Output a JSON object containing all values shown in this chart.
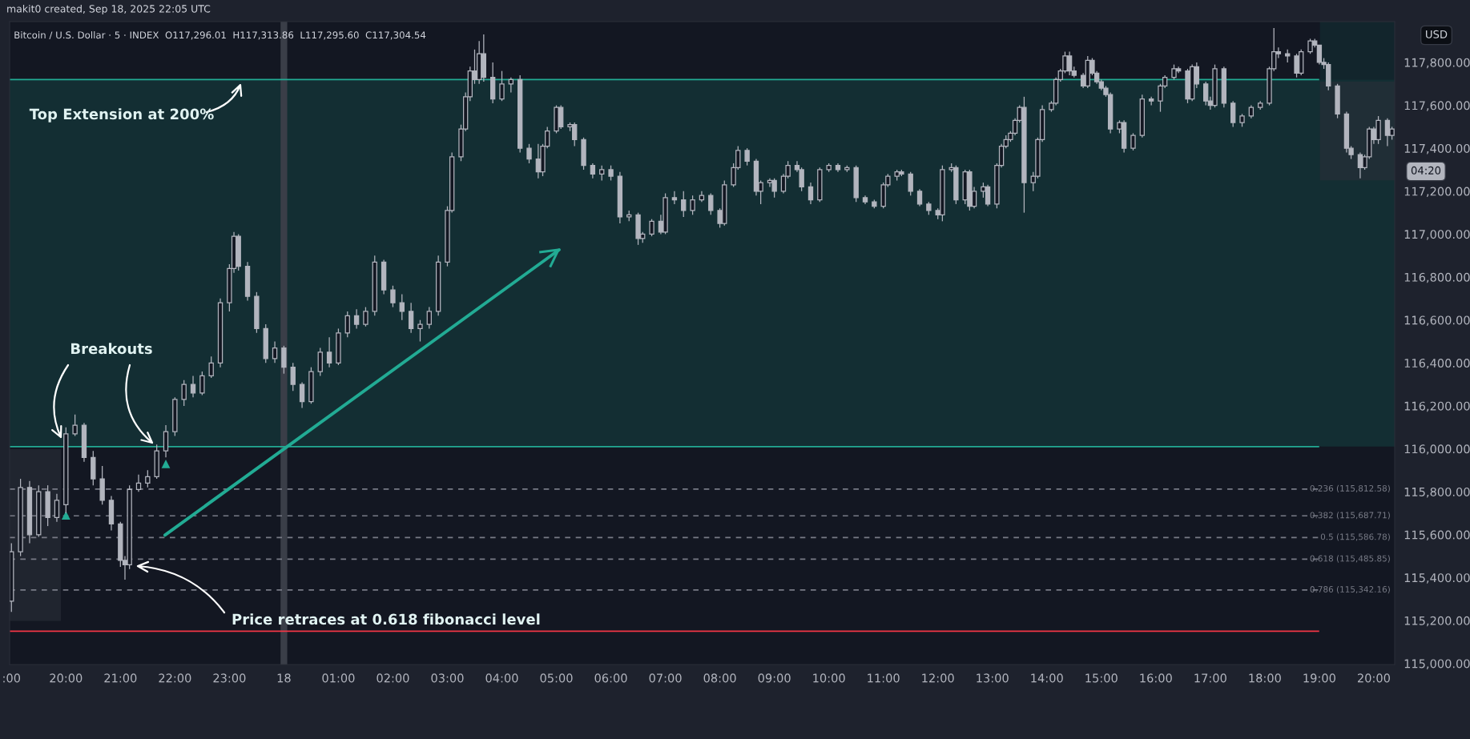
{
  "chart_data": {
    "type": "candlestick",
    "title": "Bitcoin / U.S. Dollar · 5 · INDEX  O117,296.01  H117,313.86  L117,295.60  C117,304.54",
    "color": "#b2b5be",
    "x": [
      "2025-09-17T19:00",
      "2025-09-17T19:10",
      "2025-09-17T19:20",
      "2025-09-17T19:30",
      "2025-09-17T19:40",
      "2025-09-17T19:50",
      "2025-09-17T20:00",
      "2025-09-17T20:10",
      "2025-09-17T20:20",
      "2025-09-17T20:30",
      "2025-09-17T20:40",
      "2025-09-17T20:50",
      "2025-09-17T21:00",
      "2025-09-17T21:05",
      "2025-09-17T21:10",
      "2025-09-17T21:20",
      "2025-09-17T21:30",
      "2025-09-17T21:40",
      "2025-09-17T21:50",
      "2025-09-17T22:00",
      "2025-09-17T22:10",
      "2025-09-17T22:20",
      "2025-09-17T22:30",
      "2025-09-17T22:40",
      "2025-09-17T22:50",
      "2025-09-17T23:00",
      "2025-09-17T23:05",
      "2025-09-17T23:10",
      "2025-09-17T23:20",
      "2025-09-17T23:30",
      "2025-09-17T23:40",
      "2025-09-17T23:50",
      "2025-09-18T00:00",
      "2025-09-18T00:10",
      "2025-09-18T00:20",
      "2025-09-18T00:30",
      "2025-09-18T00:40",
      "2025-09-18T00:50",
      "2025-09-18T01:00",
      "2025-09-18T01:10",
      "2025-09-18T01:20",
      "2025-09-18T01:30",
      "2025-09-18T01:40",
      "2025-09-18T01:50",
      "2025-09-18T02:00",
      "2025-09-18T02:10",
      "2025-09-18T02:20",
      "2025-09-18T02:30",
      "2025-09-18T02:40",
      "2025-09-18T02:50",
      "2025-09-18T03:00",
      "2025-09-18T03:05",
      "2025-09-18T03:15",
      "2025-09-18T03:20",
      "2025-09-18T03:25",
      "2025-09-18T03:30",
      "2025-09-18T03:35",
      "2025-09-18T03:40",
      "2025-09-18T03:50",
      "2025-09-18T04:00",
      "2025-09-18T04:10",
      "2025-09-18T04:20",
      "2025-09-18T04:30",
      "2025-09-18T04:40",
      "2025-09-18T04:45",
      "2025-09-18T04:50",
      "2025-09-18T05:00",
      "2025-09-18T05:05",
      "2025-09-18T05:15",
      "2025-09-18T05:20",
      "2025-09-18T05:30",
      "2025-09-18T05:40",
      "2025-09-18T05:50",
      "2025-09-18T06:00",
      "2025-09-18T06:10",
      "2025-09-18T06:20",
      "2025-09-18T06:30",
      "2025-09-18T06:35",
      "2025-09-18T06:45",
      "2025-09-18T06:55",
      "2025-09-18T07:00",
      "2025-09-18T07:10",
      "2025-09-18T07:20",
      "2025-09-18T07:30",
      "2025-09-18T07:40",
      "2025-09-18T07:50",
      "2025-09-18T08:00",
      "2025-09-18T08:05",
      "2025-09-18T08:15",
      "2025-09-18T08:20",
      "2025-09-18T08:30",
      "2025-09-18T08:40",
      "2025-09-18T08:45",
      "2025-09-18T08:55",
      "2025-09-18T09:00",
      "2025-09-18T09:10",
      "2025-09-18T09:15",
      "2025-09-18T09:25",
      "2025-09-18T09:30",
      "2025-09-18T09:40",
      "2025-09-18T09:50",
      "2025-09-18T10:00",
      "2025-09-18T10:10",
      "2025-09-18T10:20",
      "2025-09-18T10:30",
      "2025-09-18T10:40",
      "2025-09-18T10:50",
      "2025-09-18T11:00",
      "2025-09-18T11:05",
      "2025-09-18T11:15",
      "2025-09-18T11:20",
      "2025-09-18T11:30",
      "2025-09-18T11:40",
      "2025-09-18T11:50",
      "2025-09-18T12:00",
      "2025-09-18T12:05",
      "2025-09-18T12:15",
      "2025-09-18T12:20",
      "2025-09-18T12:30",
      "2025-09-18T12:35",
      "2025-09-18T12:40",
      "2025-09-18T12:50",
      "2025-09-18T12:55",
      "2025-09-18T13:05",
      "2025-09-18T13:10",
      "2025-09-18T13:15",
      "2025-09-18T13:20",
      "2025-09-18T13:25",
      "2025-09-18T13:30",
      "2025-09-18T13:35",
      "2025-09-18T13:45",
      "2025-09-18T13:50",
      "2025-09-18T13:55",
      "2025-09-18T14:05",
      "2025-09-18T14:10",
      "2025-09-18T14:15",
      "2025-09-18T14:20",
      "2025-09-18T14:25",
      "2025-09-18T14:30",
      "2025-09-18T14:40",
      "2025-09-18T14:45",
      "2025-09-18T14:50",
      "2025-09-18T14:55",
      "2025-09-18T15:00",
      "2025-09-18T15:05",
      "2025-09-18T15:10",
      "2025-09-18T15:20",
      "2025-09-18T15:25",
      "2025-09-18T15:35",
      "2025-09-18T15:45",
      "2025-09-18T15:55",
      "2025-09-18T16:05",
      "2025-09-18T16:10",
      "2025-09-18T16:20",
      "2025-09-18T16:25",
      "2025-09-18T16:35",
      "2025-09-18T16:40",
      "2025-09-18T16:45",
      "2025-09-18T16:55",
      "2025-09-18T17:00",
      "2025-09-18T17:05",
      "2025-09-18T17:15",
      "2025-09-18T17:25",
      "2025-09-18T17:35",
      "2025-09-18T17:45",
      "2025-09-18T17:55",
      "2025-09-18T18:05",
      "2025-09-18T18:10",
      "2025-09-18T18:15",
      "2025-09-18T18:25",
      "2025-09-18T18:35",
      "2025-09-18T18:40",
      "2025-09-18T18:50",
      "2025-09-18T18:55",
      "2025-09-18T19:00",
      "2025-09-18T19:05",
      "2025-09-18T19:10",
      "2025-09-18T19:20",
      "2025-09-18T19:30",
      "2025-09-18T19:35",
      "2025-09-18T19:45",
      "2025-09-18T19:50",
      "2025-09-18T19:55",
      "2025-09-18T20:00",
      "2025-09-18T20:05",
      "2025-09-18T20:15",
      "2025-09-18T20:20"
    ],
    "ohlc": [
      [
        115290,
        115560,
        115240,
        115520
      ],
      [
        115520,
        115860,
        115500,
        115820
      ],
      [
        115820,
        115850,
        115560,
        115600
      ],
      [
        115600,
        115830,
        115590,
        115800
      ],
      [
        115800,
        115830,
        115640,
        115680
      ],
      [
        115680,
        115790,
        115660,
        115760
      ],
      [
        115740,
        116100,
        115700,
        116070
      ],
      [
        116070,
        116160,
        116060,
        116110
      ],
      [
        116110,
        116120,
        115940,
        115960
      ],
      [
        115960,
        115990,
        115830,
        115860
      ],
      [
        115860,
        115920,
        115740,
        115760
      ],
      [
        115760,
        115780,
        115620,
        115650
      ],
      [
        115650,
        115660,
        115450,
        115480
      ],
      [
        115480,
        115500,
        115390,
        115460
      ],
      [
        115460,
        115830,
        115440,
        115810
      ],
      [
        115810,
        115880,
        115800,
        115840
      ],
      [
        115840,
        115900,
        115820,
        115870
      ],
      [
        115870,
        116020,
        115860,
        115990
      ],
      [
        115990,
        116110,
        115960,
        116080
      ],
      [
        116080,
        116240,
        116060,
        116230
      ],
      [
        116230,
        116320,
        116200,
        116300
      ],
      [
        116300,
        116340,
        116240,
        116260
      ],
      [
        116260,
        116360,
        116250,
        116340
      ],
      [
        116340,
        116430,
        116330,
        116400
      ],
      [
        116400,
        116700,
        116380,
        116680
      ],
      [
        116680,
        116860,
        116640,
        116840
      ],
      [
        116840,
        117010,
        116820,
        116990
      ],
      [
        116990,
        117000,
        116830,
        116850
      ],
      [
        116850,
        116870,
        116690,
        116710
      ],
      [
        116710,
        116730,
        116540,
        116560
      ],
      [
        116560,
        116580,
        116400,
        116420
      ],
      [
        116420,
        116500,
        116400,
        116470
      ],
      [
        116470,
        116480,
        116350,
        116380
      ],
      [
        116380,
        116400,
        116270,
        116300
      ],
      [
        116300,
        116310,
        116190,
        116220
      ],
      [
        116220,
        116380,
        116210,
        116360
      ],
      [
        116360,
        116470,
        116340,
        116450
      ],
      [
        116450,
        116520,
        116380,
        116400
      ],
      [
        116400,
        116560,
        116390,
        116540
      ],
      [
        116540,
        116640,
        116520,
        116620
      ],
      [
        116620,
        116650,
        116560,
        116580
      ],
      [
        116580,
        116660,
        116570,
        116640
      ],
      [
        116640,
        116900,
        116620,
        116870
      ],
      [
        116870,
        116880,
        116720,
        116740
      ],
      [
        116740,
        116760,
        116660,
        116680
      ],
      [
        116680,
        116720,
        116600,
        116640
      ],
      [
        116640,
        116680,
        116540,
        116560
      ],
      [
        116560,
        116600,
        116500,
        116580
      ],
      [
        116580,
        116660,
        116560,
        116640
      ],
      [
        116640,
        116900,
        116620,
        116870
      ],
      [
        116870,
        117130,
        116850,
        117110
      ],
      [
        117110,
        117380,
        117100,
        117360
      ],
      [
        117360,
        117510,
        117340,
        117490
      ],
      [
        117490,
        117660,
        117480,
        117640
      ],
      [
        117640,
        117780,
        117620,
        117760
      ],
      [
        117760,
        117860,
        117700,
        117720
      ],
      [
        117720,
        117900,
        117700,
        117840
      ],
      [
        117840,
        117930,
        117710,
        117730
      ],
      [
        117730,
        117800,
        117610,
        117630
      ],
      [
        117630,
        117760,
        117620,
        117700
      ],
      [
        117700,
        117730,
        117660,
        117720
      ],
      [
        117720,
        117740,
        117380,
        117400
      ],
      [
        117400,
        117420,
        117330,
        117350
      ],
      [
        117350,
        117420,
        117260,
        117290
      ],
      [
        117290,
        117420,
        117270,
        117410
      ],
      [
        117410,
        117500,
        117400,
        117480
      ],
      [
        117480,
        117600,
        117470,
        117590
      ],
      [
        117590,
        117600,
        117490,
        117500
      ],
      [
        117500,
        117520,
        117480,
        117510
      ],
      [
        117510,
        117520,
        117410,
        117440
      ],
      [
        117440,
        117450,
        117300,
        117320
      ],
      [
        117320,
        117330,
        117260,
        117280
      ],
      [
        117280,
        117320,
        117250,
        117300
      ],
      [
        117300,
        117320,
        117250,
        117270
      ],
      [
        117270,
        117290,
        117050,
        117080
      ],
      [
        117080,
        117110,
        117060,
        117090
      ],
      [
        117090,
        117100,
        116950,
        116980
      ],
      [
        116980,
        117010,
        116960,
        117000
      ],
      [
        117000,
        117070,
        116990,
        117060
      ],
      [
        117060,
        117090,
        117000,
        117010
      ],
      [
        117010,
        117190,
        117000,
        117170
      ],
      [
        117170,
        117200,
        117140,
        117160
      ],
      [
        117160,
        117200,
        117080,
        117110
      ],
      [
        117110,
        117180,
        117090,
        117160
      ],
      [
        117160,
        117200,
        117150,
        117180
      ],
      [
        117180,
        117190,
        117090,
        117110
      ],
      [
        117110,
        117120,
        117030,
        117050
      ],
      [
        117050,
        117250,
        117040,
        117230
      ],
      [
        117230,
        117330,
        117220,
        117310
      ],
      [
        117310,
        117410,
        117300,
        117390
      ],
      [
        117390,
        117400,
        117320,
        117340
      ],
      [
        117340,
        117350,
        117180,
        117200
      ],
      [
        117200,
        117250,
        117140,
        117240
      ],
      [
        117240,
        117260,
        117220,
        117250
      ],
      [
        117250,
        117260,
        117170,
        117200
      ],
      [
        117200,
        117280,
        117190,
        117270
      ],
      [
        117270,
        117340,
        117260,
        117320
      ],
      [
        117320,
        117340,
        117290,
        117300
      ],
      [
        117300,
        117310,
        117200,
        117220
      ],
      [
        117220,
        117240,
        117140,
        117160
      ],
      [
        117160,
        117310,
        117150,
        117300
      ],
      [
        117300,
        117330,
        117290,
        117320
      ],
      [
        117320,
        117330,
        117290,
        117300
      ],
      [
        117300,
        117320,
        117290,
        117310
      ],
      [
        117310,
        117320,
        117150,
        117170
      ],
      [
        117170,
        117180,
        117140,
        117150
      ],
      [
        117150,
        117160,
        117120,
        117130
      ],
      [
        117130,
        117240,
        117120,
        117230
      ],
      [
        117230,
        117280,
        117220,
        117270
      ],
      [
        117270,
        117300,
        117250,
        117290
      ],
      [
        117290,
        117300,
        117270,
        117280
      ],
      [
        117280,
        117290,
        117180,
        117200
      ],
      [
        117200,
        117210,
        117130,
        117140
      ],
      [
        117140,
        117150,
        117090,
        117110
      ],
      [
        117110,
        117120,
        117070,
        117090
      ],
      [
        117090,
        117320,
        117060,
        117300
      ],
      [
        117300,
        117330,
        117290,
        117310
      ],
      [
        117310,
        117320,
        117140,
        117160
      ],
      [
        117160,
        117300,
        117140,
        117290
      ],
      [
        117290,
        117300,
        117110,
        117130
      ],
      [
        117130,
        117220,
        117120,
        117200
      ],
      [
        117200,
        117240,
        117170,
        117220
      ],
      [
        117220,
        117230,
        117130,
        117140
      ],
      [
        117140,
        117330,
        117120,
        117320
      ],
      [
        117320,
        117420,
        117310,
        117410
      ],
      [
        117410,
        117460,
        117400,
        117440
      ],
      [
        117440,
        117480,
        117430,
        117470
      ],
      [
        117470,
        117540,
        117460,
        117530
      ],
      [
        117530,
        117600,
        117520,
        117590
      ],
      [
        117590,
        117640,
        117100,
        117240
      ],
      [
        117240,
        117290,
        117200,
        117270
      ],
      [
        117270,
        117450,
        117260,
        117440
      ],
      [
        117440,
        117600,
        117430,
        117580
      ],
      [
        117580,
        117620,
        117570,
        117610
      ],
      [
        117610,
        117730,
        117600,
        117720
      ],
      [
        117720,
        117770,
        117710,
        117760
      ],
      [
        117760,
        117850,
        117750,
        117830
      ],
      [
        117830,
        117850,
        117740,
        117760
      ],
      [
        117760,
        117780,
        117730,
        117740
      ],
      [
        117740,
        117750,
        117680,
        117690
      ],
      [
        117690,
        117830,
        117680,
        117810
      ],
      [
        117810,
        117820,
        117740,
        117750
      ],
      [
        117750,
        117760,
        117700,
        117710
      ],
      [
        117710,
        117720,
        117670,
        117680
      ],
      [
        117680,
        117690,
        117640,
        117650
      ],
      [
        117650,
        117660,
        117470,
        117490
      ],
      [
        117490,
        117530,
        117470,
        117520
      ],
      [
        117520,
        117530,
        117380,
        117400
      ],
      [
        117400,
        117470,
        117390,
        117460
      ],
      [
        117460,
        117650,
        117450,
        117630
      ],
      [
        117630,
        117640,
        117600,
        117620
      ],
      [
        117620,
        117700,
        117570,
        117690
      ],
      [
        117690,
        117740,
        117680,
        117730
      ],
      [
        117730,
        117790,
        117720,
        117770
      ],
      [
        117770,
        117780,
        117750,
        117760
      ],
      [
        117760,
        117770,
        117610,
        117630
      ],
      [
        117630,
        117790,
        117620,
        117780
      ],
      [
        117780,
        117800,
        117680,
        117700
      ],
      [
        117700,
        117710,
        117600,
        117620
      ],
      [
        117620,
        117640,
        117580,
        117600
      ],
      [
        117600,
        117790,
        117590,
        117770
      ],
      [
        117770,
        117780,
        117590,
        117610
      ],
      [
        117610,
        117620,
        117500,
        117520
      ],
      [
        117520,
        117560,
        117500,
        117550
      ],
      [
        117550,
        117600,
        117540,
        117590
      ],
      [
        117590,
        117620,
        117580,
        117610
      ],
      [
        117610,
        117780,
        117600,
        117770
      ],
      [
        117770,
        117960,
        117760,
        117850
      ],
      [
        117850,
        117870,
        117820,
        117840
      ],
      [
        117840,
        117860,
        117800,
        117830
      ],
      [
        117830,
        117840,
        117730,
        117750
      ],
      [
        117750,
        117860,
        117740,
        117850
      ],
      [
        117850,
        117910,
        117840,
        117900
      ],
      [
        117900,
        117910,
        117870,
        117880
      ],
      [
        117880,
        117880,
        117790,
        117800
      ],
      [
        117800,
        117820,
        117770,
        117790
      ],
      [
        117790,
        117800,
        117670,
        117690
      ],
      [
        117690,
        117700,
        117540,
        117560
      ],
      [
        117560,
        117570,
        117380,
        117400
      ],
      [
        117400,
        117410,
        117350,
        117370
      ],
      [
        117370,
        117380,
        117260,
        117310
      ],
      [
        117310,
        117370,
        117300,
        117360
      ],
      [
        117360,
        117500,
        117350,
        117490
      ],
      [
        117490,
        117500,
        117420,
        117440
      ],
      [
        117440,
        117550,
        117420,
        117530
      ],
      [
        117530,
        117540,
        117410,
        117460
      ],
      [
        117460,
        117500,
        117440,
        117490
      ]
    ],
    "series": [
      {
        "type": "scatter",
        "marker": "triangle",
        "color": "#22ab94",
        "x": [
          "2025-09-17T20:00",
          "2025-09-17T21:50"
        ],
        "values": [
          115690,
          115930
        ]
      },
      {
        "type": "line",
        "color": "#22ab94",
        "x": [
          "2025-09-17T21:49",
          "2025-09-18T05:03"
        ],
        "values": [
          115598,
          116927
        ]
      }
    ],
    "xlim": [
      "2025-09-17T18:58",
      "2025-09-18T20:23"
    ],
    "xticks": [
      {
        "value": "2025-09-17T19:00",
        "label": ":00"
      },
      {
        "value": "2025-09-17T20:00",
        "label": "20:00"
      },
      {
        "value": "2025-09-17T21:00",
        "label": "21:00"
      },
      {
        "value": "2025-09-17T22:00",
        "label": "22:00"
      },
      {
        "value": "2025-09-17T23:00",
        "label": "23:00"
      },
      {
        "value": "2025-09-18T00:00",
        "label": "18"
      },
      {
        "value": "2025-09-18T01:00",
        "label": "01:00"
      },
      {
        "value": "2025-09-18T02:00",
        "label": "02:00"
      },
      {
        "value": "2025-09-18T03:00",
        "label": "03:00"
      },
      {
        "value": "2025-09-18T04:00",
        "label": "04:00"
      },
      {
        "value": "2025-09-18T05:00",
        "label": "05:00"
      },
      {
        "value": "2025-09-18T06:00",
        "label": "06:00"
      },
      {
        "value": "2025-09-18T07:00",
        "label": "07:00"
      },
      {
        "value": "2025-09-18T08:00",
        "label": "08:00"
      },
      {
        "value": "2025-09-18T09:00",
        "label": "09:00"
      },
      {
        "value": "2025-09-18T10:00",
        "label": "10:00"
      },
      {
        "value": "2025-09-18T11:00",
        "label": "11:00"
      },
      {
        "value": "2025-09-18T12:00",
        "label": "12:00"
      },
      {
        "value": "2025-09-18T13:00",
        "label": "13:00"
      },
      {
        "value": "2025-09-18T14:00",
        "label": "14:00"
      },
      {
        "value": "2025-09-18T15:00",
        "label": "15:00"
      },
      {
        "value": "2025-09-18T16:00",
        "label": "16:00"
      },
      {
        "value": "2025-09-18T17:00",
        "label": "17:00"
      },
      {
        "value": "2025-09-18T18:00",
        "label": "18:00"
      },
      {
        "value": "2025-09-18T19:00",
        "label": "19:00"
      },
      {
        "value": "2025-09-18T20:00",
        "label": "20:00"
      }
    ],
    "ylim": [
      114995,
      117990
    ],
    "yticks": [
      {
        "value": 115000,
        "label": "115,000.00"
      },
      {
        "value": 115200,
        "label": "115,200.00"
      },
      {
        "value": 115400,
        "label": "115,400.00"
      },
      {
        "value": 115600,
        "label": "115,600.00"
      },
      {
        "value": 115800,
        "label": "115,800.00"
      },
      {
        "value": 116000,
        "label": "116,000.00"
      },
      {
        "value": 116200,
        "label": "116,200.00"
      },
      {
        "value": 116400,
        "label": "116,400.00"
      },
      {
        "value": 116600,
        "label": "116,600.00"
      },
      {
        "value": 116800,
        "label": "116,800.00"
      },
      {
        "value": 117000,
        "label": "117,000.00"
      },
      {
        "value": 117200,
        "label": "117,200.00"
      },
      {
        "value": 117400,
        "label": "117,400.00"
      },
      {
        "value": 117600,
        "label": "117,600.00"
      },
      {
        "value": 117800,
        "label": "117,800.00"
      }
    ],
    "bands": [
      {
        "axis": "y",
        "from": 116010,
        "to": 117720,
        "color": "#132e33"
      }
    ],
    "ref_lines": [
      {
        "axis": "y",
        "value": 116010,
        "color": "#22ab94",
        "line_style": "solid"
      },
      {
        "axis": "y",
        "value": 117720,
        "color": "#22ab94",
        "line_style": "solid"
      },
      {
        "axis": "y",
        "value": 115150,
        "color": "#f23645",
        "line_style": "solid"
      },
      {
        "axis": "y",
        "value": 115812.58,
        "label": "0.236 (115,812.58)",
        "color": "#787b86",
        "line_style": "dashed"
      },
      {
        "axis": "y",
        "value": 115687.71,
        "label": "0.382 (115,687.71)",
        "color": "#787b86",
        "line_style": "dashed"
      },
      {
        "axis": "y",
        "value": 115586.78,
        "label": "0.5 (115,586.78)",
        "color": "#787b86",
        "line_style": "dashed"
      },
      {
        "axis": "y",
        "value": 115485.85,
        "label": "0.618 (115,485.85)",
        "color": "#787b86",
        "line_style": "dashed"
      },
      {
        "axis": "y",
        "value": 115342.16,
        "label": "0.786 (115,342.16)",
        "color": "#787b86",
        "line_style": "dashed"
      },
      {
        "axis": "x",
        "value": "2025-09-18T00:00",
        "color": "#3a3e48",
        "line_style": "solid"
      }
    ],
    "annotations": [
      "Top Extension at 200%",
      "Breakouts",
      "Price retraces at 0.618 fibonacci level",
      "makit0 created, Sep 18, 2025 22:05 UTC",
      "USD",
      "04:20"
    ],
    "grid": false
  }
}
